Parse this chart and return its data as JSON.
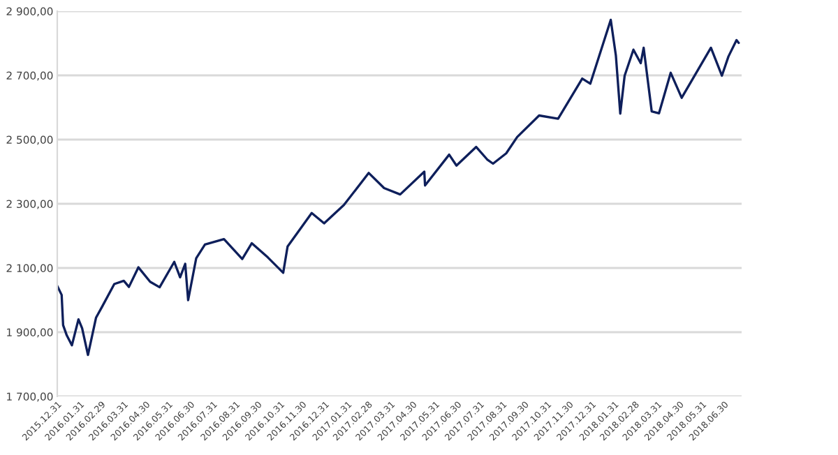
{
  "chart_data": {
    "type": "line",
    "x": [
      "2015-12-31",
      "2016-01-06",
      "2016-01-08",
      "2016-01-13",
      "2016-01-20",
      "2016-01-29",
      "2016-02-03",
      "2016-02-11",
      "2016-02-22",
      "2016-03-01",
      "2016-03-18",
      "2016-03-31",
      "2016-04-07",
      "2016-04-20",
      "2016-05-06",
      "2016-05-19",
      "2016-06-08",
      "2016-06-16",
      "2016-06-23",
      "2016-06-27",
      "2016-07-08",
      "2016-07-20",
      "2016-08-15",
      "2016-09-09",
      "2016-09-22",
      "2016-10-14",
      "2016-11-04",
      "2016-11-10",
      "2016-12-13",
      "2016-12-30",
      "2017-01-26",
      "2017-03-01",
      "2017-03-22",
      "2017-04-13",
      "2017-05-16",
      "2017-05-17",
      "2017-06-19",
      "2017-06-29",
      "2017-07-26",
      "2017-08-10",
      "2017-08-18",
      "2017-09-05",
      "2017-09-20",
      "2017-10-20",
      "2017-11-15",
      "2017-12-18",
      "2017-12-29",
      "2018-01-26",
      "2018-02-02",
      "2018-02-08",
      "2018-02-14",
      "2018-02-26",
      "2018-03-08",
      "2018-03-12",
      "2018-03-23",
      "2018-04-02",
      "2018-04-18",
      "2018-05-03",
      "2018-06-12",
      "2018-06-27",
      "2018-07-06",
      "2018-07-17",
      "2018-07-20"
    ],
    "series": [
      {
        "color": "#0e1f5b",
        "values": [
          2044,
          2016,
          1922,
          1890,
          1859,
          1940,
          1912,
          1829,
          1945,
          1978,
          2050,
          2060,
          2041,
          2102,
          2057,
          2040,
          2119,
          2071,
          2113,
          2000,
          2130,
          2173,
          2190,
          2128,
          2177,
          2133,
          2085,
          2167,
          2271,
          2239,
          2296,
          2396,
          2349,
          2329,
          2400,
          2357,
          2453,
          2419,
          2477,
          2438,
          2425,
          2457,
          2508,
          2575,
          2565,
          2690,
          2674,
          2873,
          2762,
          2581,
          2699,
          2780,
          2738,
          2786,
          2588,
          2582,
          2708,
          2630,
          2786,
          2699,
          2759,
          2810,
          2801
        ]
      }
    ],
    "xlim": [
      "2015-12-31",
      "2018-07-24"
    ],
    "xticks": [
      {
        "value": "2015-12-31",
        "label": "2015.12.31"
      },
      {
        "value": "2016-01-31",
        "label": "2016.01.31"
      },
      {
        "value": "2016-02-29",
        "label": "2016.02.29"
      },
      {
        "value": "2016-03-31",
        "label": "2016.03.31"
      },
      {
        "value": "2016-04-30",
        "label": "2016.04.30"
      },
      {
        "value": "2016-05-31",
        "label": "2016.05.31"
      },
      {
        "value": "2016-06-30",
        "label": "2016.06.30"
      },
      {
        "value": "2016-07-31",
        "label": "2016.07.31"
      },
      {
        "value": "2016-08-31",
        "label": "2016.08.31"
      },
      {
        "value": "2016-09-30",
        "label": "2016.09.30"
      },
      {
        "value": "2016-10-31",
        "label": "2016.10.31"
      },
      {
        "value": "2016-11-30",
        "label": "2016.11.30"
      },
      {
        "value": "2016-12-31",
        "label": "2016.12.31"
      },
      {
        "value": "2017-01-31",
        "label": "2017.01.31"
      },
      {
        "value": "2017-02-28",
        "label": "2017.02.28"
      },
      {
        "value": "2017-03-31",
        "label": "2017.03.31"
      },
      {
        "value": "2017-04-30",
        "label": "2017.04.30"
      },
      {
        "value": "2017-05-31",
        "label": "2017.05.31"
      },
      {
        "value": "2017-06-30",
        "label": "2017.06.30"
      },
      {
        "value": "2017-07-31",
        "label": "2017.07.31"
      },
      {
        "value": "2017-08-31",
        "label": "2017.08.31"
      },
      {
        "value": "2017-09-30",
        "label": "2017.09.30"
      },
      {
        "value": "2017-10-31",
        "label": "2017.10.31"
      },
      {
        "value": "2017-11-30",
        "label": "2017.11.30"
      },
      {
        "value": "2017-12-31",
        "label": "2017.12.31"
      },
      {
        "value": "2018-01-31",
        "label": "2018.01.31"
      },
      {
        "value": "2018-02-28",
        "label": "2018.02.28"
      },
      {
        "value": "2018-03-31",
        "label": "2018.03.31"
      },
      {
        "value": "2018-04-30",
        "label": "2018.04.30"
      },
      {
        "value": "2018-05-31",
        "label": "2018.05.31"
      },
      {
        "value": "2018-06-30",
        "label": "2018.06.30"
      }
    ],
    "ylim": [
      1700,
      2900
    ],
    "yticks": [
      {
        "value": 1700,
        "label": "1 700,00"
      },
      {
        "value": 1900,
        "label": "1 900,00"
      },
      {
        "value": 2100,
        "label": "2 100,00"
      },
      {
        "value": 2300,
        "label": "2 300,00"
      },
      {
        "value": 2500,
        "label": "2 500,00"
      },
      {
        "value": 2700,
        "label": "2 700,00"
      },
      {
        "value": 2900,
        "label": "2 900,00"
      }
    ],
    "grid": "y",
    "marker": "none",
    "line_style": "solid"
  }
}
